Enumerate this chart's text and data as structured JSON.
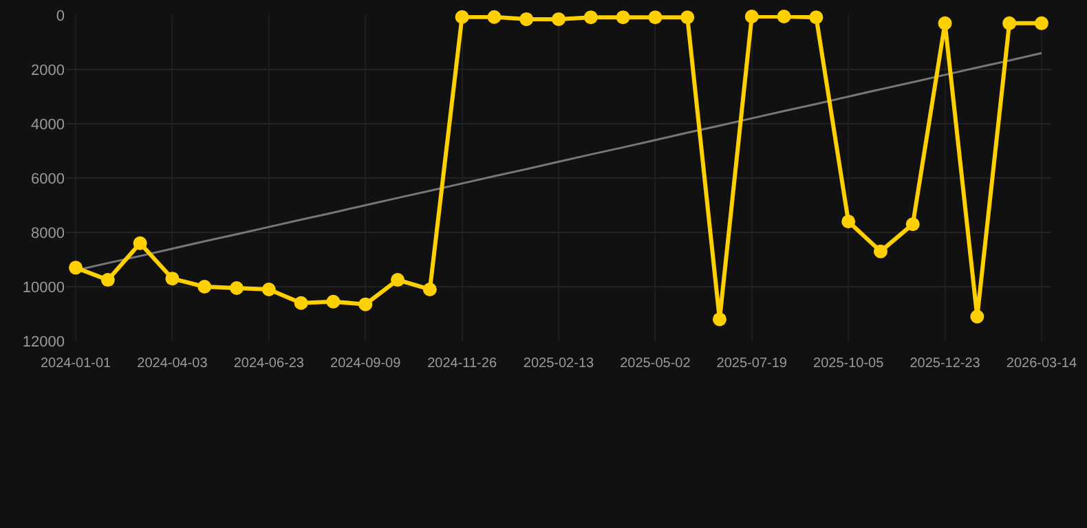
{
  "chart_data": {
    "type": "line",
    "categories": [
      "2024-01-01",
      null,
      null,
      "2024-04-03",
      null,
      null,
      "2024-06-23",
      null,
      null,
      "2024-09-09",
      null,
      null,
      "2024-11-26",
      null,
      null,
      "2025-02-13",
      null,
      null,
      "2025-05-02",
      null,
      null,
      "2025-07-19",
      null,
      null,
      "2025-10-05",
      null,
      null,
      "2025-12-23",
      null,
      null,
      "2026-03-14"
    ],
    "series": [
      {
        "color": "#ffd000",
        "values": [
          9300,
          9750,
          8400,
          9700,
          10000,
          10050,
          10100,
          10600,
          10550,
          10650,
          9750,
          10100,
          70,
          70,
          150,
          150,
          80,
          80,
          80,
          80,
          11200,
          50,
          50,
          80,
          7600,
          8700,
          7700,
          300,
          11100,
          300,
          300
        ]
      },
      {
        "type": "line",
        "color": "#777777",
        "marker": "none",
        "values": [
          9400,
          9130,
          8870,
          8600,
          8330,
          8070,
          7800,
          7530,
          7270,
          7000,
          6730,
          6470,
          6200,
          5930,
          5670,
          5400,
          5130,
          4870,
          4600,
          4330,
          4070,
          3800,
          3530,
          3270,
          3000,
          2730,
          2470,
          2200,
          1930,
          1670,
          1400
        ]
      }
    ],
    "ylim": [
      12000,
      0
    ],
    "yticks": [
      0,
      2000,
      4000,
      6000,
      8000,
      10000,
      12000
    ],
    "grid": true,
    "marker": "circle",
    "line_style": "solid"
  }
}
